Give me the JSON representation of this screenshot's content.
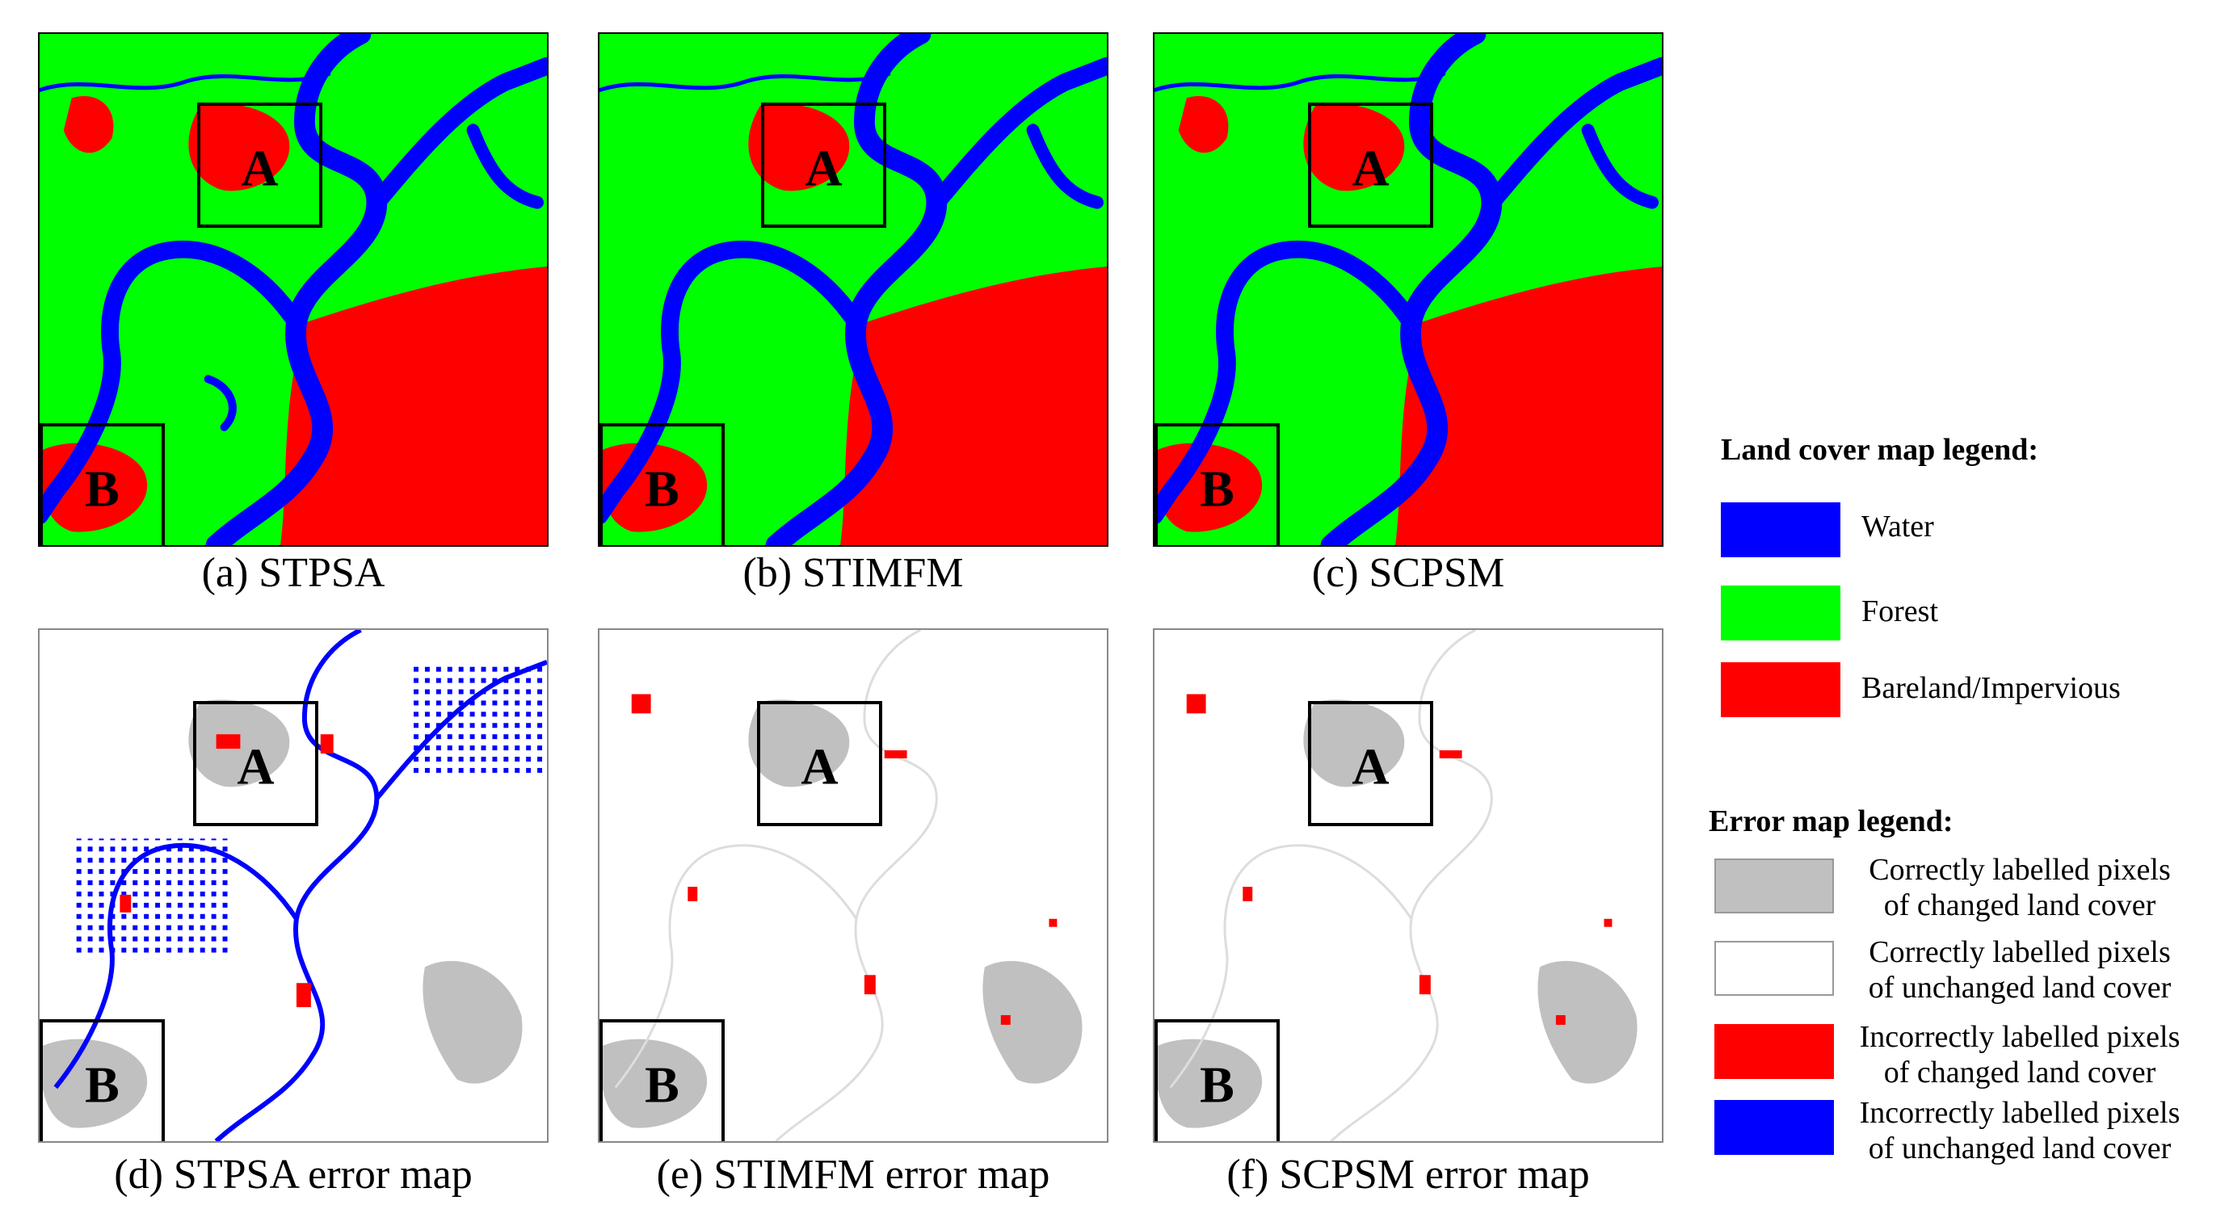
{
  "box_labels": {
    "a": "A",
    "b": "B"
  },
  "panels": [
    {
      "id": "a",
      "caption": "(a) STPSA",
      "kind": "landcover"
    },
    {
      "id": "b",
      "caption": "(b) STIMFM",
      "kind": "landcover"
    },
    {
      "id": "c",
      "caption": "(c) SCPSM",
      "kind": "landcover"
    },
    {
      "id": "d",
      "caption": "(d) STPSA error map",
      "kind": "error"
    },
    {
      "id": "e",
      "caption": "(e) STIMFM error map",
      "kind": "error"
    },
    {
      "id": "f",
      "caption": "(f) SCPSM error map",
      "kind": "error"
    }
  ],
  "land_legend": {
    "title": "Land cover map legend:",
    "items": [
      {
        "label": "Water",
        "color": "#0000ff"
      },
      {
        "label": "Forest",
        "color": "#00ff00"
      },
      {
        "label": "Bareland/Impervious",
        "color": "#ff0000"
      }
    ]
  },
  "error_legend": {
    "title": "Error map legend:",
    "items": [
      {
        "line1": "Correctly labelled pixels",
        "line2": "of changed land cover",
        "color": "#c0c0c0"
      },
      {
        "line1": "Correctly labelled pixels",
        "line2": "of unchanged land cover",
        "color": "#ffffff"
      },
      {
        "line1": "Incorrectly labelled pixels",
        "line2": "of changed land cover",
        "color": "#ff0000"
      },
      {
        "line1": "Incorrectly labelled pixels",
        "line2": "of unchanged land cover",
        "color": "#0000ff"
      }
    ]
  }
}
